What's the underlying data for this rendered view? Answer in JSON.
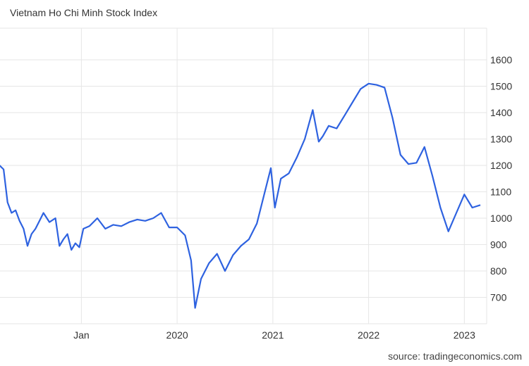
{
  "chart_data": {
    "type": "line",
    "title": "Vietnam Ho Chi Minh Stock Index",
    "source": "source: tradingeconomics.com",
    "y_ticks": [
      700,
      800,
      900,
      1000,
      1100,
      1200,
      1300,
      1400,
      1500,
      1600
    ],
    "x_ticks": [
      "Jan",
      "2020",
      "2021",
      "2022",
      "2023"
    ],
    "ylim": [
      600,
      1720
    ],
    "grid": true,
    "line_color": "#2e62e0",
    "series": [
      {
        "x": [
          "2018-03",
          "2018-03",
          "2018-04",
          "2018-04",
          "2018-05",
          "2018-05",
          "2018-06",
          "2018-06",
          "2018-07",
          "2018-07",
          "2018-08",
          "2018-08",
          "2018-09",
          "2018-10",
          "2018-10",
          "2018-11",
          "2018-11",
          "2018-12",
          "2018-12",
          "2019-01",
          "2019-01",
          "2019-02",
          "2019-03",
          "2019-04",
          "2019-05",
          "2019-06",
          "2019-07",
          "2019-08",
          "2019-09",
          "2019-10",
          "2019-11",
          "2019-12",
          "2020-01",
          "2020-02",
          "2020-03",
          "2020-03",
          "2020-04",
          "2020-05",
          "2020-06",
          "2020-07",
          "2020-08",
          "2020-09",
          "2020-10",
          "2020-11",
          "2020-12",
          "2021-01",
          "2021-01",
          "2021-02",
          "2021-03",
          "2021-04",
          "2021-05",
          "2021-06",
          "2021-07",
          "2021-07",
          "2021-08",
          "2021-09",
          "2021-10",
          "2021-11",
          "2021-12",
          "2022-01",
          "2022-02",
          "2022-03",
          "2022-04",
          "2022-05",
          "2022-06",
          "2022-07",
          "2022-08",
          "2022-09",
          "2022-10",
          "2022-11",
          "2022-12",
          "2023-01",
          "2023-02",
          "2023-03"
        ],
        "values": [
          1200,
          1185,
          1060,
          1020,
          1030,
          990,
          960,
          895,
          940,
          960,
          990,
          1020,
          985,
          1000,
          895,
          920,
          940,
          880,
          905,
          890,
          960,
          970,
          1000,
          960,
          975,
          970,
          985,
          995,
          990,
          1000,
          1020,
          965,
          965,
          935,
          840,
          660,
          770,
          830,
          865,
          800,
          860,
          895,
          920,
          980,
          1100,
          1190,
          1040,
          1150,
          1170,
          1230,
          1300,
          1410,
          1290,
          1310,
          1350,
          1340,
          1390,
          1440,
          1490,
          1510,
          1505,
          1495,
          1380,
          1240,
          1205,
          1210,
          1270,
          1160,
          1040,
          950,
          1020,
          1090,
          1040,
          1050
        ]
      }
    ]
  }
}
